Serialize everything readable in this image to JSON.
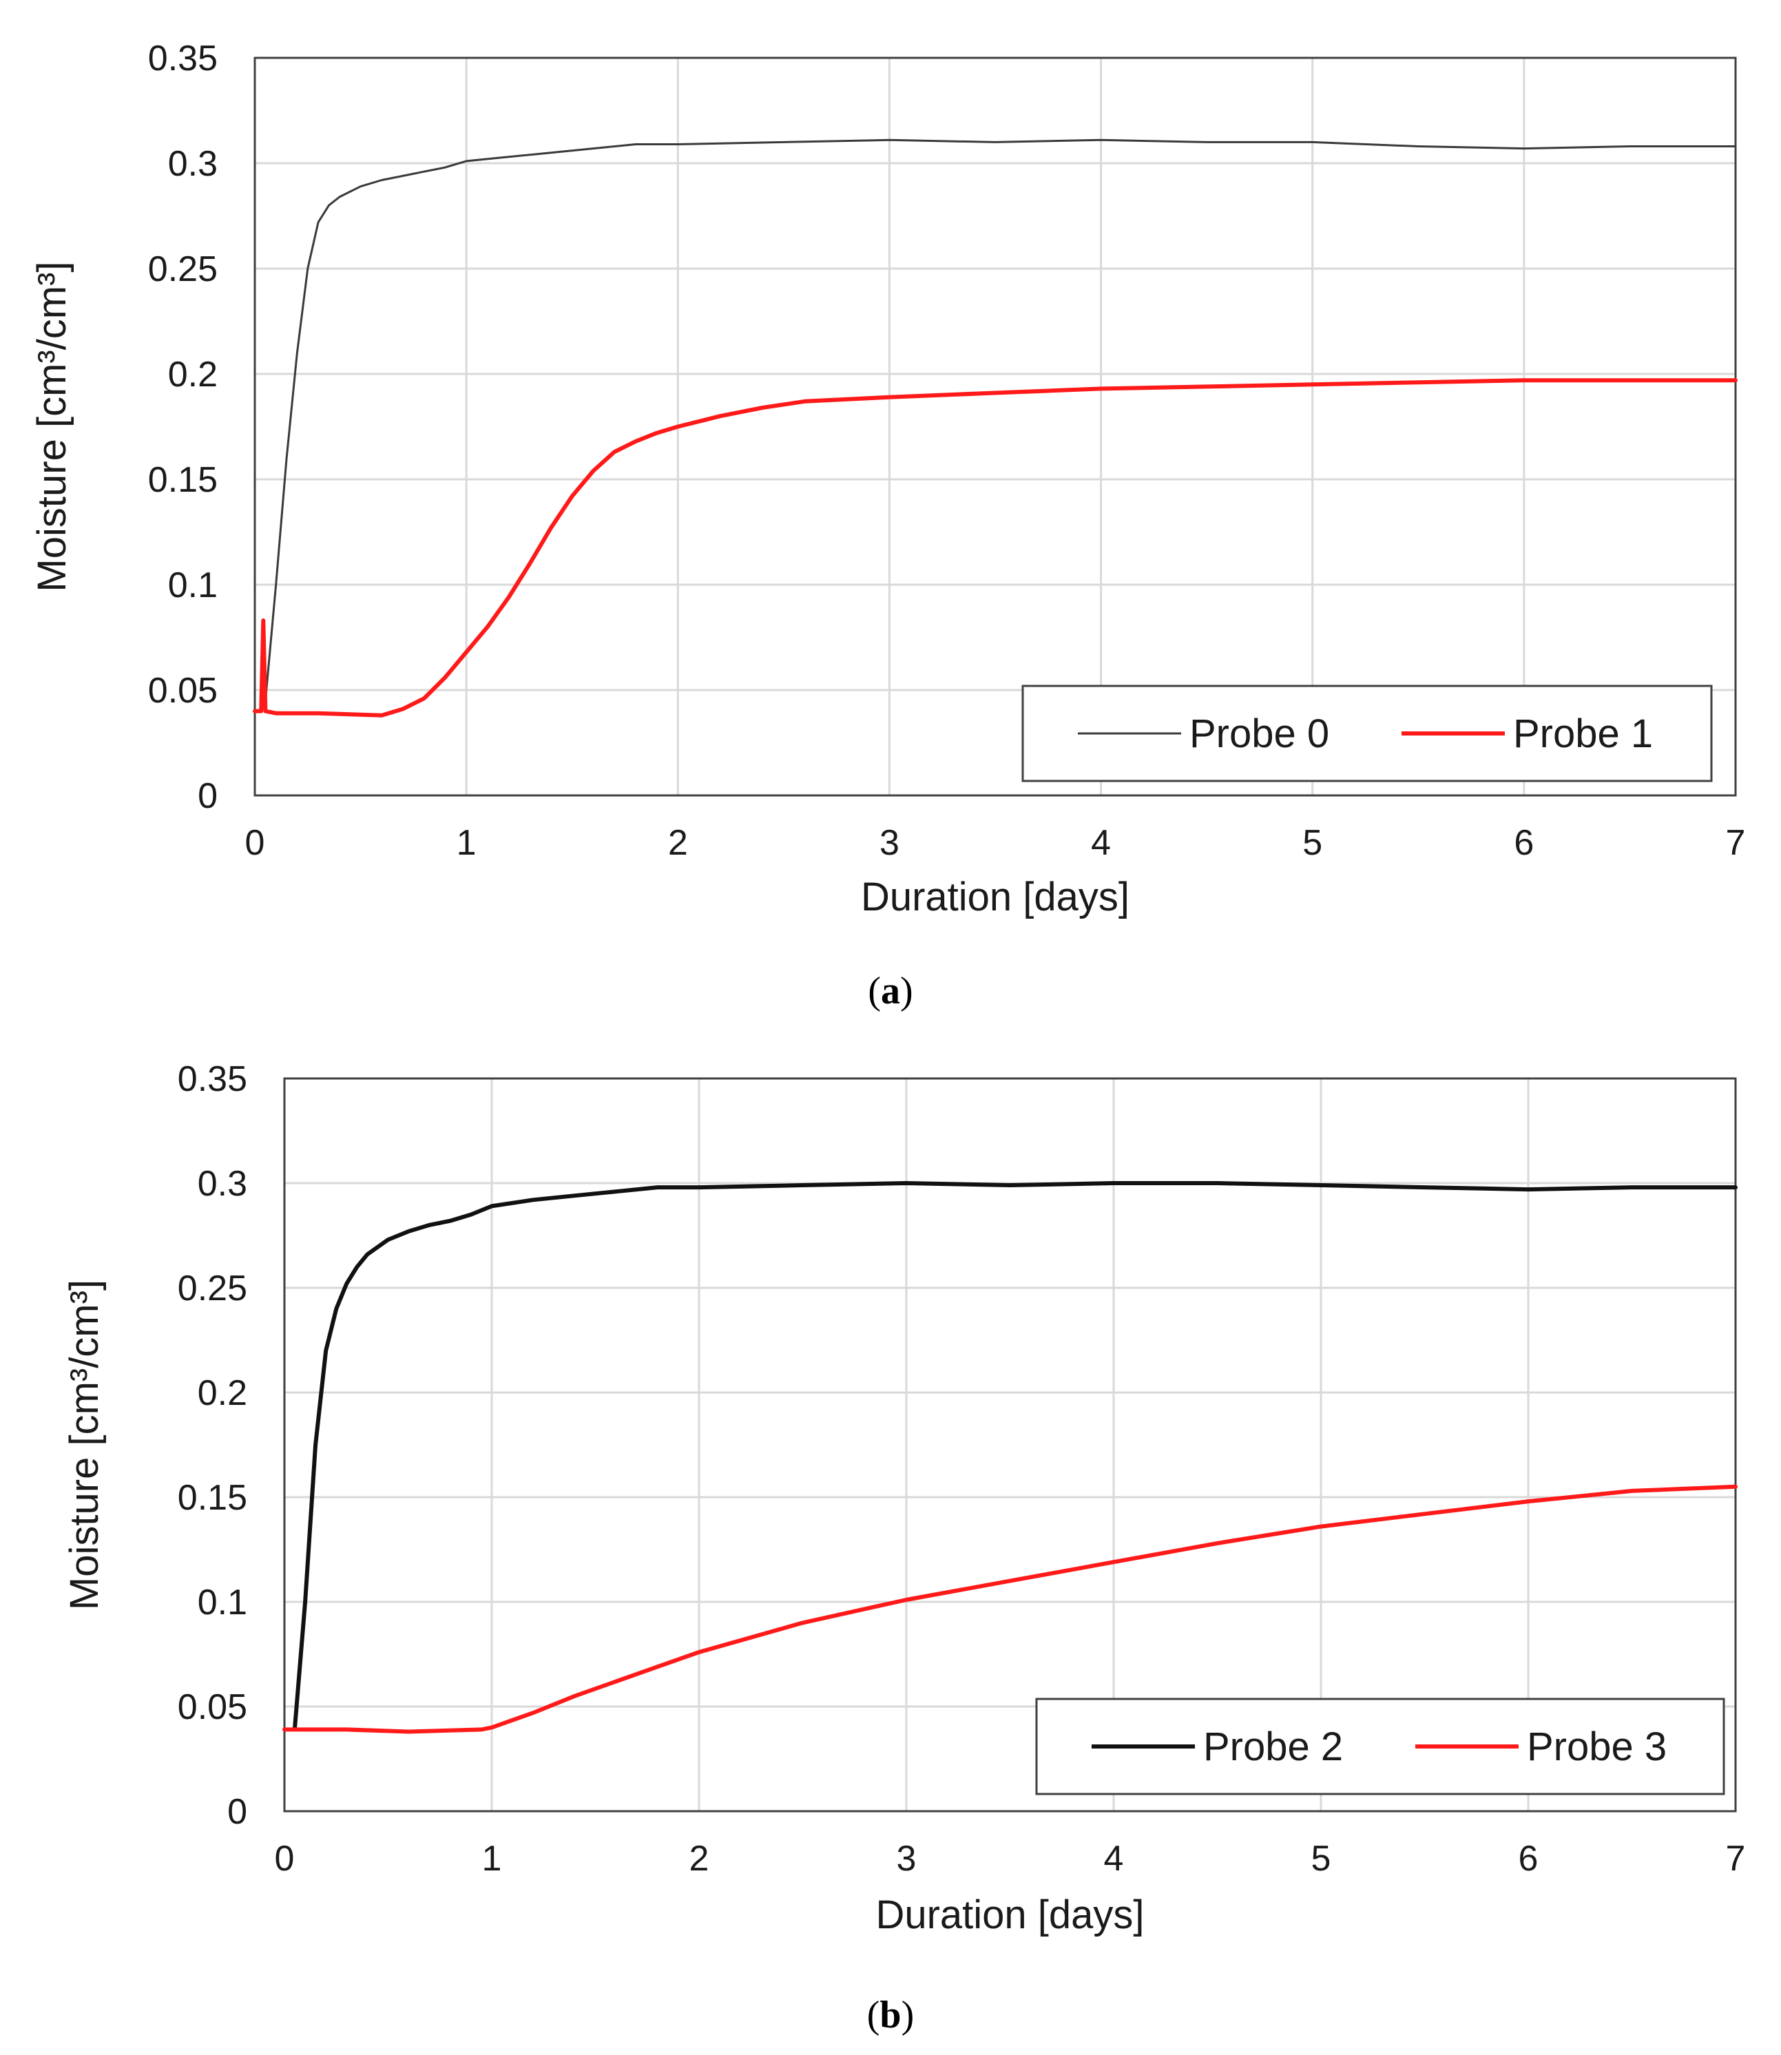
{
  "chart_data": [
    {
      "type": "line",
      "panel_label": "a",
      "xlabel": "Duration [days]",
      "ylabel": "Moisture [cm³/cm³]",
      "xlim": [
        0,
        7
      ],
      "ylim": [
        0,
        0.35
      ],
      "x_ticks": [
        "0",
        "1",
        "2",
        "3",
        "4",
        "5",
        "6",
        "7"
      ],
      "y_ticks": [
        "0",
        "0.05",
        "0.1",
        "0.15",
        "0.2",
        "0.25",
        "0.3",
        "0.35"
      ],
      "grid": true,
      "legend_position": "bottom-right",
      "series": [
        {
          "name": "Probe 0",
          "color": "#3a3a3a",
          "line_weight": "thin",
          "points": [
            [
              0.02,
              0.04
            ],
            [
              0.05,
              0.045
            ],
            [
              0.1,
              0.1
            ],
            [
              0.15,
              0.16
            ],
            [
              0.2,
              0.21
            ],
            [
              0.25,
              0.25
            ],
            [
              0.3,
              0.272
            ],
            [
              0.35,
              0.28
            ],
            [
              0.4,
              0.284
            ],
            [
              0.5,
              0.289
            ],
            [
              0.6,
              0.292
            ],
            [
              0.7,
              0.294
            ],
            [
              0.8,
              0.296
            ],
            [
              0.9,
              0.298
            ],
            [
              1.0,
              0.301
            ],
            [
              1.2,
              0.303
            ],
            [
              1.4,
              0.305
            ],
            [
              1.6,
              0.307
            ],
            [
              1.8,
              0.309
            ],
            [
              2.0,
              0.309
            ],
            [
              2.5,
              0.31
            ],
            [
              3.0,
              0.311
            ],
            [
              3.5,
              0.31
            ],
            [
              4.0,
              0.311
            ],
            [
              4.5,
              0.31
            ],
            [
              5.0,
              0.31
            ],
            [
              5.5,
              0.308
            ],
            [
              6.0,
              0.307
            ],
            [
              6.5,
              0.308
            ],
            [
              7.0,
              0.308
            ]
          ]
        },
        {
          "name": "Probe 1",
          "color": "#ff1a1a",
          "line_weight": "thick",
          "points": [
            [
              0.0,
              0.04
            ],
            [
              0.03,
              0.04
            ],
            [
              0.04,
              0.083
            ],
            [
              0.05,
              0.04
            ],
            [
              0.1,
              0.039
            ],
            [
              0.3,
              0.039
            ],
            [
              0.6,
              0.038
            ],
            [
              0.7,
              0.041
            ],
            [
              0.8,
              0.046
            ],
            [
              0.9,
              0.056
            ],
            [
              1.0,
              0.068
            ],
            [
              1.1,
              0.08
            ],
            [
              1.2,
              0.094
            ],
            [
              1.3,
              0.11
            ],
            [
              1.4,
              0.127
            ],
            [
              1.5,
              0.142
            ],
            [
              1.6,
              0.154
            ],
            [
              1.7,
              0.163
            ],
            [
              1.8,
              0.168
            ],
            [
              1.9,
              0.172
            ],
            [
              2.0,
              0.175
            ],
            [
              2.2,
              0.18
            ],
            [
              2.4,
              0.184
            ],
            [
              2.6,
              0.187
            ],
            [
              2.8,
              0.188
            ],
            [
              3.0,
              0.189
            ],
            [
              3.5,
              0.191
            ],
            [
              4.0,
              0.193
            ],
            [
              4.5,
              0.194
            ],
            [
              5.0,
              0.195
            ],
            [
              5.5,
              0.196
            ],
            [
              6.0,
              0.197
            ],
            [
              6.5,
              0.197
            ],
            [
              7.0,
              0.197
            ]
          ]
        }
      ]
    },
    {
      "type": "line",
      "panel_label": "b",
      "xlabel": "Duration [days]",
      "ylabel": "Moisture [cm³/cm³]",
      "xlim": [
        0,
        7
      ],
      "ylim": [
        0,
        0.35
      ],
      "x_ticks": [
        "0",
        "1",
        "2",
        "3",
        "4",
        "5",
        "6",
        "7"
      ],
      "y_ticks": [
        "0",
        "0.05",
        "0.1",
        "0.15",
        "0.2",
        "0.25",
        "0.3",
        "0.35"
      ],
      "grid": true,
      "legend_position": "bottom-right",
      "series": [
        {
          "name": "Probe 2",
          "color": "#111111",
          "line_weight": "thick",
          "points": [
            [
              0.05,
              0.04
            ],
            [
              0.1,
              0.1
            ],
            [
              0.15,
              0.175
            ],
            [
              0.2,
              0.22
            ],
            [
              0.25,
              0.24
            ],
            [
              0.3,
              0.252
            ],
            [
              0.35,
              0.26
            ],
            [
              0.4,
              0.266
            ],
            [
              0.5,
              0.273
            ],
            [
              0.6,
              0.277
            ],
            [
              0.7,
              0.28
            ],
            [
              0.8,
              0.282
            ],
            [
              0.9,
              0.285
            ],
            [
              1.0,
              0.289
            ],
            [
              1.2,
              0.292
            ],
            [
              1.4,
              0.294
            ],
            [
              1.6,
              0.296
            ],
            [
              1.8,
              0.298
            ],
            [
              2.0,
              0.298
            ],
            [
              2.5,
              0.299
            ],
            [
              3.0,
              0.3
            ],
            [
              3.5,
              0.299
            ],
            [
              4.0,
              0.3
            ],
            [
              4.5,
              0.3
            ],
            [
              5.0,
              0.299
            ],
            [
              5.5,
              0.298
            ],
            [
              6.0,
              0.297
            ],
            [
              6.5,
              0.298
            ],
            [
              7.0,
              0.298
            ]
          ]
        },
        {
          "name": "Probe 3",
          "color": "#ff1a1a",
          "line_weight": "thick",
          "points": [
            [
              0.0,
              0.039
            ],
            [
              0.3,
              0.039
            ],
            [
              0.6,
              0.038
            ],
            [
              0.95,
              0.039
            ],
            [
              1.0,
              0.04
            ],
            [
              1.2,
              0.047
            ],
            [
              1.4,
              0.055
            ],
            [
              1.6,
              0.062
            ],
            [
              1.8,
              0.069
            ],
            [
              2.0,
              0.076
            ],
            [
              2.5,
              0.09
            ],
            [
              3.0,
              0.101
            ],
            [
              3.5,
              0.11
            ],
            [
              4.0,
              0.119
            ],
            [
              4.5,
              0.128
            ],
            [
              5.0,
              0.136
            ],
            [
              5.5,
              0.142
            ],
            [
              6.0,
              0.148
            ],
            [
              6.5,
              0.153
            ],
            [
              7.0,
              0.155
            ]
          ]
        }
      ]
    }
  ]
}
